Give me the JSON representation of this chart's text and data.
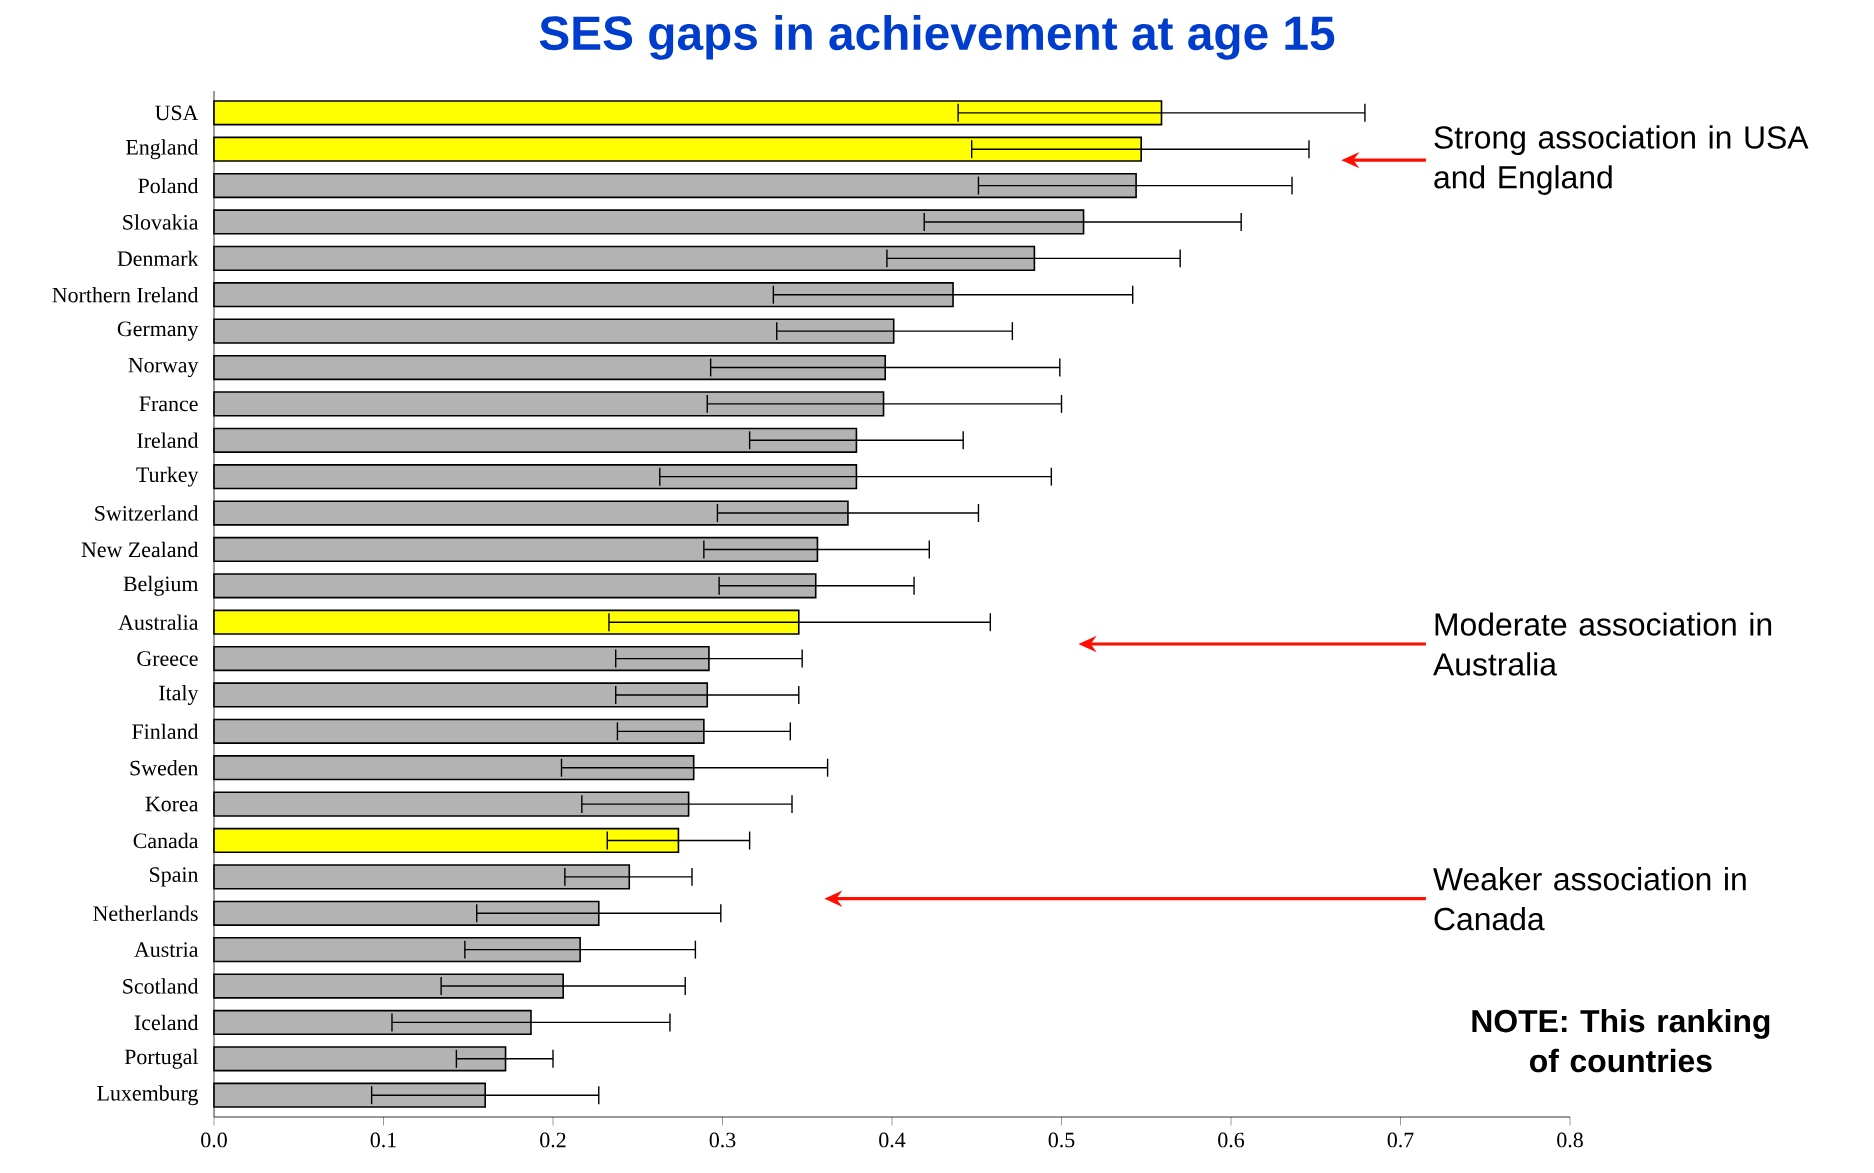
{
  "chart_data": {
    "type": "bar",
    "orientation": "horizontal",
    "title": "SES gaps in achievement at age 15",
    "categories": [
      "USA",
      "England",
      "Poland",
      "Slovakia",
      "Denmark",
      "Northern Ireland",
      "Germany",
      "Norway",
      "France",
      "Ireland",
      "Turkey",
      "Switzerland",
      "New Zealand",
      "Belgium",
      "Australia",
      "Greece",
      "Italy",
      "Finland",
      "Sweden",
      "Korea",
      "Canada",
      "Spain",
      "Netherlands",
      "Austria",
      "Scotland",
      "Iceland",
      "Portugal",
      "Luxemburg"
    ],
    "values": [
      0.559,
      0.547,
      0.544,
      0.513,
      0.484,
      0.436,
      0.401,
      0.396,
      0.395,
      0.379,
      0.379,
      0.374,
      0.356,
      0.355,
      0.345,
      0.292,
      0.291,
      0.289,
      0.283,
      0.28,
      0.274,
      0.245,
      0.227,
      0.216,
      0.206,
      0.187,
      0.172,
      0.16
    ],
    "errors": [
      [
        0.439,
        0.679
      ],
      [
        0.447,
        0.646
      ],
      [
        0.451,
        0.636
      ],
      [
        0.419,
        0.606
      ],
      [
        0.397,
        0.57
      ],
      [
        0.33,
        0.542
      ],
      [
        0.332,
        0.471
      ],
      [
        0.293,
        0.499
      ],
      [
        0.291,
        0.5
      ],
      [
        0.316,
        0.442
      ],
      [
        0.263,
        0.494
      ],
      [
        0.297,
        0.451
      ],
      [
        0.289,
        0.422
      ],
      [
        0.298,
        0.413
      ],
      [
        0.233,
        0.458
      ],
      [
        0.237,
        0.347
      ],
      [
        0.237,
        0.345
      ],
      [
        0.238,
        0.34
      ],
      [
        0.205,
        0.362
      ],
      [
        0.217,
        0.341
      ],
      [
        0.232,
        0.316
      ],
      [
        0.207,
        0.282
      ],
      [
        0.155,
        0.299
      ],
      [
        0.148,
        0.284
      ],
      [
        0.134,
        0.278
      ],
      [
        0.105,
        0.269
      ],
      [
        0.143,
        0.2
      ],
      [
        0.093,
        0.227
      ]
    ],
    "colors": [
      "#ffff00",
      "#ffff00",
      "#b3b3b3",
      "#b3b3b3",
      "#b3b3b3",
      "#b3b3b3",
      "#b3b3b3",
      "#b3b3b3",
      "#b3b3b3",
      "#b3b3b3",
      "#b3b3b3",
      "#b3b3b3",
      "#b3b3b3",
      "#b3b3b3",
      "#ffff00",
      "#b3b3b3",
      "#b3b3b3",
      "#b3b3b3",
      "#b3b3b3",
      "#b3b3b3",
      "#ffff00",
      "#b3b3b3",
      "#b3b3b3",
      "#b3b3b3",
      "#b3b3b3",
      "#b3b3b3",
      "#b3b3b3",
      "#b3b3b3"
    ],
    "xlim": [
      0,
      0.8
    ],
    "xticks": [
      {
        "value": 0,
        "label": "0.0"
      },
      {
        "value": 0.1,
        "label": "0.1"
      },
      {
        "value": 0.2,
        "label": "0.2"
      },
      {
        "value": 0.3,
        "label": "0.3"
      },
      {
        "value": 0.4,
        "label": "0.4"
      },
      {
        "value": 0.5,
        "label": "0.5"
      },
      {
        "value": 0.6,
        "label": "0.6"
      },
      {
        "value": 0.7,
        "label": "0.7"
      },
      {
        "value": 0.8,
        "label": "0.8"
      }
    ],
    "annotations": [
      "Strong association in USA and England",
      "Moderate association in Australia",
      "Weaker association in Canada",
      "NOTE: This ranking of countries"
    ]
  }
}
